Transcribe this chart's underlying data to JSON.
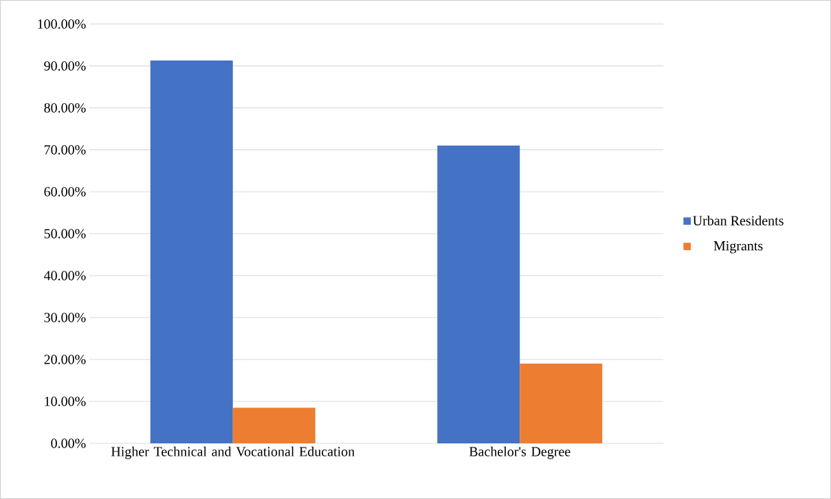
{
  "chart_data": {
    "type": "bar",
    "categories": [
      "Higher Technical and Vocational Education",
      "Bachelor's Degree"
    ],
    "series": [
      {
        "name": "Urban Residents",
        "color": "#4472c4",
        "values": [
          91.3,
          71.0
        ]
      },
      {
        "name": "Migrants",
        "color": "#ed7d31",
        "values": [
          8.5,
          19.0
        ]
      }
    ],
    "ylim": [
      0,
      100
    ],
    "yticks": [
      {
        "value": 0,
        "label": "0.00%"
      },
      {
        "value": 10,
        "label": "10.00%"
      },
      {
        "value": 20,
        "label": "20.00%"
      },
      {
        "value": 30,
        "label": "30.00%"
      },
      {
        "value": 40,
        "label": "40.00%"
      },
      {
        "value": 50,
        "label": "50.00%"
      },
      {
        "value": 60,
        "label": "60.00%"
      },
      {
        "value": 70,
        "label": "70.00%"
      },
      {
        "value": 80,
        "label": "80.00%"
      },
      {
        "value": 90,
        "label": "90.00%"
      },
      {
        "value": 100,
        "label": "100.00%"
      }
    ],
    "grid": "y",
    "legend": "right"
  }
}
